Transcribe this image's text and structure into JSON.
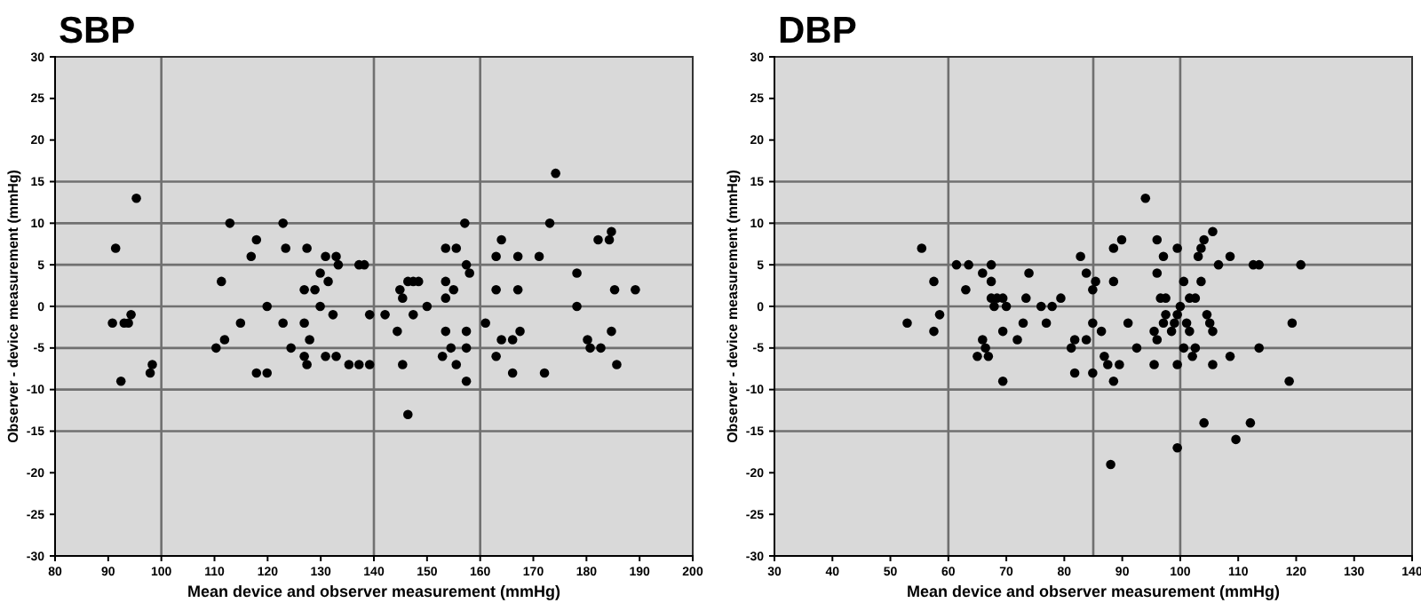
{
  "chart_data": [
    {
      "type": "scatter",
      "title": "SBP",
      "xlabel": "Mean device and observer measurement (mmHg)",
      "ylabel": "Observer - device measurement (mmHg)",
      "marker": "circle",
      "xlim": [
        80,
        200
      ],
      "xticks": [
        80,
        90,
        100,
        110,
        120,
        130,
        140,
        150,
        160,
        170,
        180,
        190,
        200
      ],
      "ylim": [
        -30,
        30
      ],
      "yticks": [
        -30,
        -25,
        -20,
        -15,
        -10,
        -5,
        0,
        5,
        10,
        15,
        20,
        25,
        30
      ],
      "ref_lines": [
        {
          "axis": "x",
          "value": 100,
          "color": "#707070"
        },
        {
          "axis": "x",
          "value": 140,
          "color": "#707070"
        },
        {
          "axis": "x",
          "value": 160,
          "color": "#707070"
        },
        {
          "axis": "y",
          "value": 15,
          "color": "#707070"
        },
        {
          "axis": "y",
          "value": 10,
          "color": "#707070"
        },
        {
          "axis": "y",
          "value": 5,
          "color": "#707070"
        },
        {
          "axis": "y",
          "value": 0,
          "color": "#707070"
        },
        {
          "axis": "y",
          "value": -5,
          "color": "#707070"
        },
        {
          "axis": "y",
          "value": -10,
          "color": "#707070"
        },
        {
          "axis": "y",
          "value": -15,
          "color": "#707070"
        }
      ],
      "series": [
        {
          "color": "#000000",
          "x": [
            90.8,
            91.4,
            92.4,
            93,
            93.8,
            94.3,
            95.3,
            97.9,
            98.3,
            110.3,
            111.3,
            111.9,
            112.9,
            114.9,
            116.9,
            117.9,
            117.9,
            119.9,
            119.9,
            122.9,
            122.9,
            123.4,
            124.4,
            126.9,
            126.9,
            126.9,
            127.4,
            127.4,
            127.9,
            128.9,
            129.9,
            129.9,
            130.9,
            130.9,
            131.4,
            132.3,
            132.9,
            133.3,
            132.9,
            135.3,
            137.2,
            138.2,
            137.2,
            139.2,
            139.2,
            142.1,
            144.4,
            144.9,
            145.4,
            145.4,
            146.4,
            146.4,
            147.4,
            148.4,
            147.4,
            150,
            152.9,
            153.5,
            155.5,
            153.5,
            153.5,
            153.5,
            154.5,
            155,
            155.5,
            157.1,
            157.4,
            158,
            157.4,
            157.4,
            157.4,
            161,
            163,
            163,
            163,
            164,
            164,
            166.1,
            166.1,
            167.1,
            167.1,
            167.5,
            171.1,
            172.1,
            173.1,
            174.2,
            178.2,
            178.2,
            180.2,
            180.7,
            182.2,
            182.7,
            184.3,
            184.7,
            184.7,
            185.3,
            185.7,
            189.2
          ],
          "values": [
            -2,
            7,
            -9,
            -2,
            -2,
            -1,
            13,
            -8,
            -7,
            -5,
            3,
            -4,
            10,
            -2,
            6,
            8,
            -8,
            0,
            -8,
            10,
            -2,
            7,
            -5,
            2,
            -2,
            -6,
            7,
            -7,
            -4,
            2,
            4,
            0,
            6,
            -6,
            3,
            -1,
            6,
            5,
            -6,
            -7,
            5,
            5,
            -7,
            -7,
            -1,
            -1,
            -3,
            2,
            1,
            -7,
            -13,
            3,
            3,
            3,
            -1,
            0,
            -6,
            7,
            7,
            3,
            1,
            -3,
            -5,
            2,
            -7,
            10,
            5,
            4,
            -3,
            -5,
            -9,
            -2,
            6,
            2,
            -6,
            8,
            -4,
            -4,
            -8,
            6,
            2,
            -3,
            6,
            -8,
            10,
            16,
            4,
            0,
            -4,
            -5,
            8,
            -5,
            8,
            9,
            -3,
            2,
            -7,
            2
          ]
        }
      ]
    },
    {
      "type": "scatter",
      "title": "DBP",
      "xlabel": "Mean device and observer measurement (mmHg)",
      "ylabel": "Observer - device measurement (mmHg)",
      "marker": "circle",
      "xlim": [
        30,
        140
      ],
      "xticks": [
        30,
        40,
        50,
        60,
        70,
        80,
        90,
        100,
        110,
        120,
        130,
        140
      ],
      "ylim": [
        -30,
        30
      ],
      "yticks": [
        -30,
        -25,
        -20,
        -15,
        -10,
        -5,
        0,
        5,
        10,
        15,
        20,
        25,
        30
      ],
      "ref_lines": [
        {
          "axis": "x",
          "value": 60,
          "color": "#707070"
        },
        {
          "axis": "x",
          "value": 85,
          "color": "#707070"
        },
        {
          "axis": "x",
          "value": 100,
          "color": "#707070"
        },
        {
          "axis": "y",
          "value": 15,
          "color": "#707070"
        },
        {
          "axis": "y",
          "value": 10,
          "color": "#707070"
        },
        {
          "axis": "y",
          "value": 5,
          "color": "#707070"
        },
        {
          "axis": "y",
          "value": 0,
          "color": "#707070"
        },
        {
          "axis": "y",
          "value": -5,
          "color": "#707070"
        },
        {
          "axis": "y",
          "value": -10,
          "color": "#707070"
        },
        {
          "axis": "y",
          "value": -15,
          "color": "#707070"
        }
      ],
      "series": [
        {
          "color": "#000000",
          "x": [
            52.9,
            55.4,
            57.5,
            57.5,
            58.5,
            61.4,
            63.5,
            63,
            65.9,
            65,
            65.9,
            66.4,
            66.9,
            67.4,
            67.4,
            67.4,
            67.9,
            68.4,
            69.4,
            70,
            69.4,
            69.4,
            71.9,
            72.9,
            73.4,
            73.9,
            76,
            77.9,
            79.4,
            76.9,
            81.8,
            81.2,
            81.8,
            82.8,
            83.8,
            83.8,
            84.9,
            85.4,
            84.9,
            84.9,
            86.4,
            86.9,
            87.5,
            88,
            88.5,
            88.5,
            88.5,
            89.5,
            89.9,
            91,
            92.5,
            94,
            95.5,
            96,
            95.5,
            96,
            96,
            96.6,
            97.5,
            97.1,
            97.1,
            97.5,
            98.5,
            99,
            99.5,
            99.5,
            99.5,
            99.5,
            100,
            100.6,
            100.6,
            101.1,
            101.6,
            102.6,
            101.6,
            102.1,
            102.6,
            103.1,
            103.6,
            104.1,
            105.6,
            103.6,
            104.1,
            104.6,
            105.1,
            105.6,
            105.6,
            106.6,
            108.6,
            108.6,
            109.6,
            112.1,
            112.6,
            113.6,
            113.6,
            118.8,
            119.3,
            120.8
          ],
          "values": [
            -2,
            7,
            3,
            -3,
            -1,
            5,
            5,
            2,
            4,
            -6,
            -4,
            -5,
            -6,
            5,
            3,
            1,
            0,
            1,
            1,
            0,
            -3,
            -9,
            -4,
            -2,
            1,
            4,
            0,
            0,
            1,
            -2,
            -4,
            -5,
            -8,
            6,
            4,
            -4,
            2,
            3,
            -2,
            -8,
            -3,
            -6,
            -7,
            -19,
            7,
            3,
            -9,
            -7,
            8,
            -2,
            -5,
            13,
            -3,
            -4,
            -7,
            8,
            4,
            1,
            1,
            6,
            -2,
            -1,
            -3,
            -2,
            7,
            -1,
            -7,
            -17,
            0,
            3,
            -5,
            -2,
            1,
            1,
            -3,
            -6,
            -5,
            6,
            7,
            8,
            9,
            3,
            -14,
            -1,
            -2,
            -3,
            -7,
            5,
            6,
            -6,
            -16,
            -14,
            5,
            5,
            -5,
            -9,
            -2,
            5
          ]
        }
      ]
    }
  ]
}
